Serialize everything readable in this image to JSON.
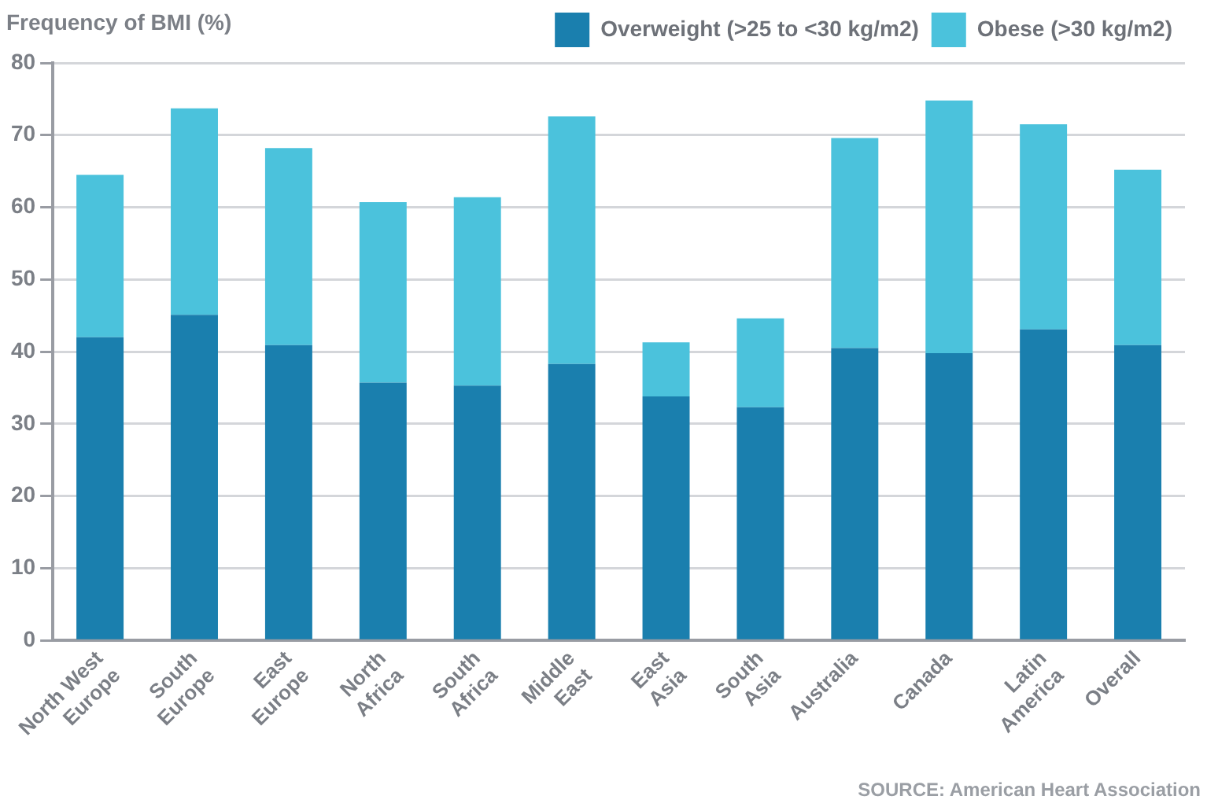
{
  "chart_data": {
    "type": "bar",
    "stacked": true,
    "ylabel": "Frequency of BMI (%)",
    "categories": [
      "North West Europe",
      "South Europe",
      "East Europe",
      "North Africa",
      "South Africa",
      "Middle East",
      "East Asia",
      "South Asia",
      "Australia",
      "Canada",
      "Latin America",
      "Overall"
    ],
    "series": [
      {
        "name": "Overweight (>25 to <30 kg/m2)",
        "color": "#1a7fae",
        "values": [
          42.0,
          45.1,
          40.9,
          35.7,
          35.3,
          38.3,
          33.8,
          32.3,
          40.5,
          39.8,
          43.1,
          40.9
        ]
      },
      {
        "name": "Obese (>30 kg/m2)",
        "color": "#4bc2dc",
        "values": [
          22.5,
          28.6,
          27.3,
          25.0,
          26.1,
          34.3,
          7.5,
          12.3,
          29.1,
          35.0,
          28.4,
          24.3
        ]
      }
    ],
    "ylim": [
      0,
      80
    ],
    "yticks": [
      0,
      10,
      20,
      30,
      40,
      50,
      60,
      70,
      80
    ],
    "grid": "y",
    "legend": "top right",
    "annotations": [
      "SOURCE: American Heart Association"
    ]
  }
}
